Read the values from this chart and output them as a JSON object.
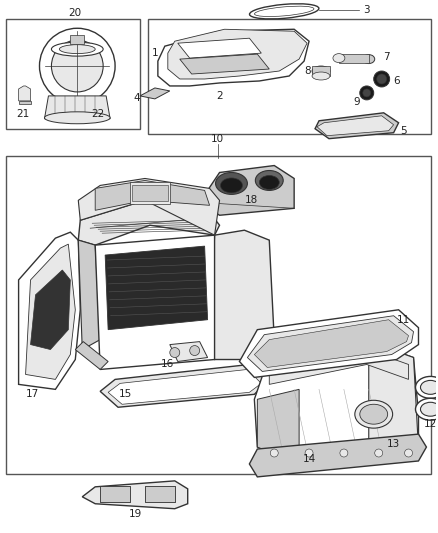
{
  "bg_color": "#ffffff",
  "line_color": "#333333",
  "dark_fill": "#1a1a1a",
  "med_fill": "#888888",
  "light_fill": "#cccccc",
  "lighter_fill": "#e8e8e8",
  "border_color": "#555555",
  "fig_width": 4.38,
  "fig_height": 5.33,
  "dpi": 100,
  "label_fs": 7.5,
  "label_color": "#222222"
}
